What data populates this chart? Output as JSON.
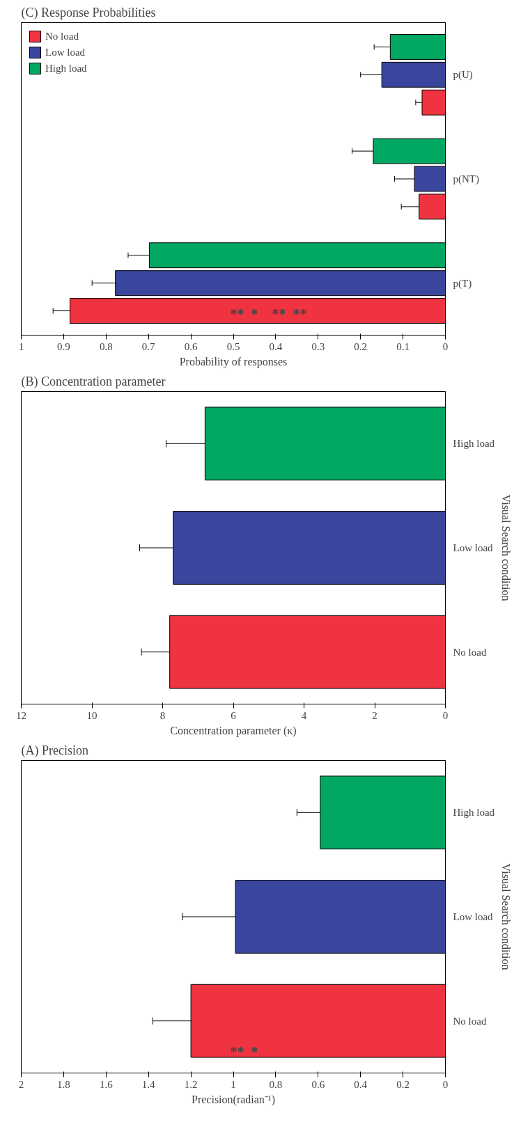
{
  "chart_data": [
    {
      "type": "bar",
      "orientation": "horizontal",
      "title": "(C) Response Probabilities",
      "xlabel": "Probability of responses",
      "categories": [
        "p(U)",
        "p(NT)",
        "p(T)"
      ],
      "xlim": [
        1,
        0
      ],
      "xticks": [
        0,
        0.1,
        0.2,
        0.3,
        0.4,
        0.5,
        0.6,
        0.7,
        0.8,
        0.9,
        1
      ],
      "grid": false,
      "legend": "top left",
      "series": [
        {
          "name": "No load",
          "color": "#ef3340",
          "values": [
            0.055,
            0.062,
            0.885
          ],
          "errors": [
            0.015,
            0.042,
            0.04
          ]
        },
        {
          "name": "Low load",
          "color": "#3a469d",
          "values": [
            0.15,
            0.073,
            0.778
          ],
          "errors": [
            0.05,
            0.047,
            0.055
          ]
        },
        {
          "name": "High load",
          "color": "#00a862",
          "values": [
            0.13,
            0.17,
            0.698
          ],
          "errors": [
            0.038,
            0.05,
            0.05
          ]
        }
      ],
      "annotations": [
        "**",
        "*",
        "**",
        "**"
      ]
    },
    {
      "type": "bar",
      "orientation": "horizontal",
      "title": "(B) Concentration parameter",
      "xlabel": "Concentration parameter (κ)",
      "ylabel": "Visual Search condition",
      "categories": [
        "High load",
        "Low load",
        "No load"
      ],
      "xlim": [
        12,
        0
      ],
      "xticks": [
        0,
        2,
        4,
        6,
        8,
        10,
        12
      ],
      "grid": false,
      "colors": [
        "#00a862",
        "#3a469d",
        "#ef3340"
      ],
      "values": [
        6.8,
        7.7,
        7.8
      ],
      "errors": [
        1.1,
        0.95,
        0.8
      ]
    },
    {
      "type": "bar",
      "orientation": "horizontal",
      "title": "(A) Precision",
      "xlabel": "Precision(radian⁻¹)",
      "ylabel": "Visual Search condition",
      "categories": [
        "High load",
        "Low load",
        "No load"
      ],
      "xlim": [
        2,
        0
      ],
      "xticks": [
        0,
        0.2,
        0.4,
        0.6,
        0.8,
        1,
        1.2,
        1.4,
        1.6,
        1.8,
        2
      ],
      "grid": false,
      "colors": [
        "#00a862",
        "#3a469d",
        "#ef3340"
      ],
      "values": [
        0.59,
        0.99,
        1.2
      ],
      "errors": [
        0.11,
        0.25,
        0.18
      ],
      "annotations": [
        "**",
        "*"
      ]
    }
  ]
}
